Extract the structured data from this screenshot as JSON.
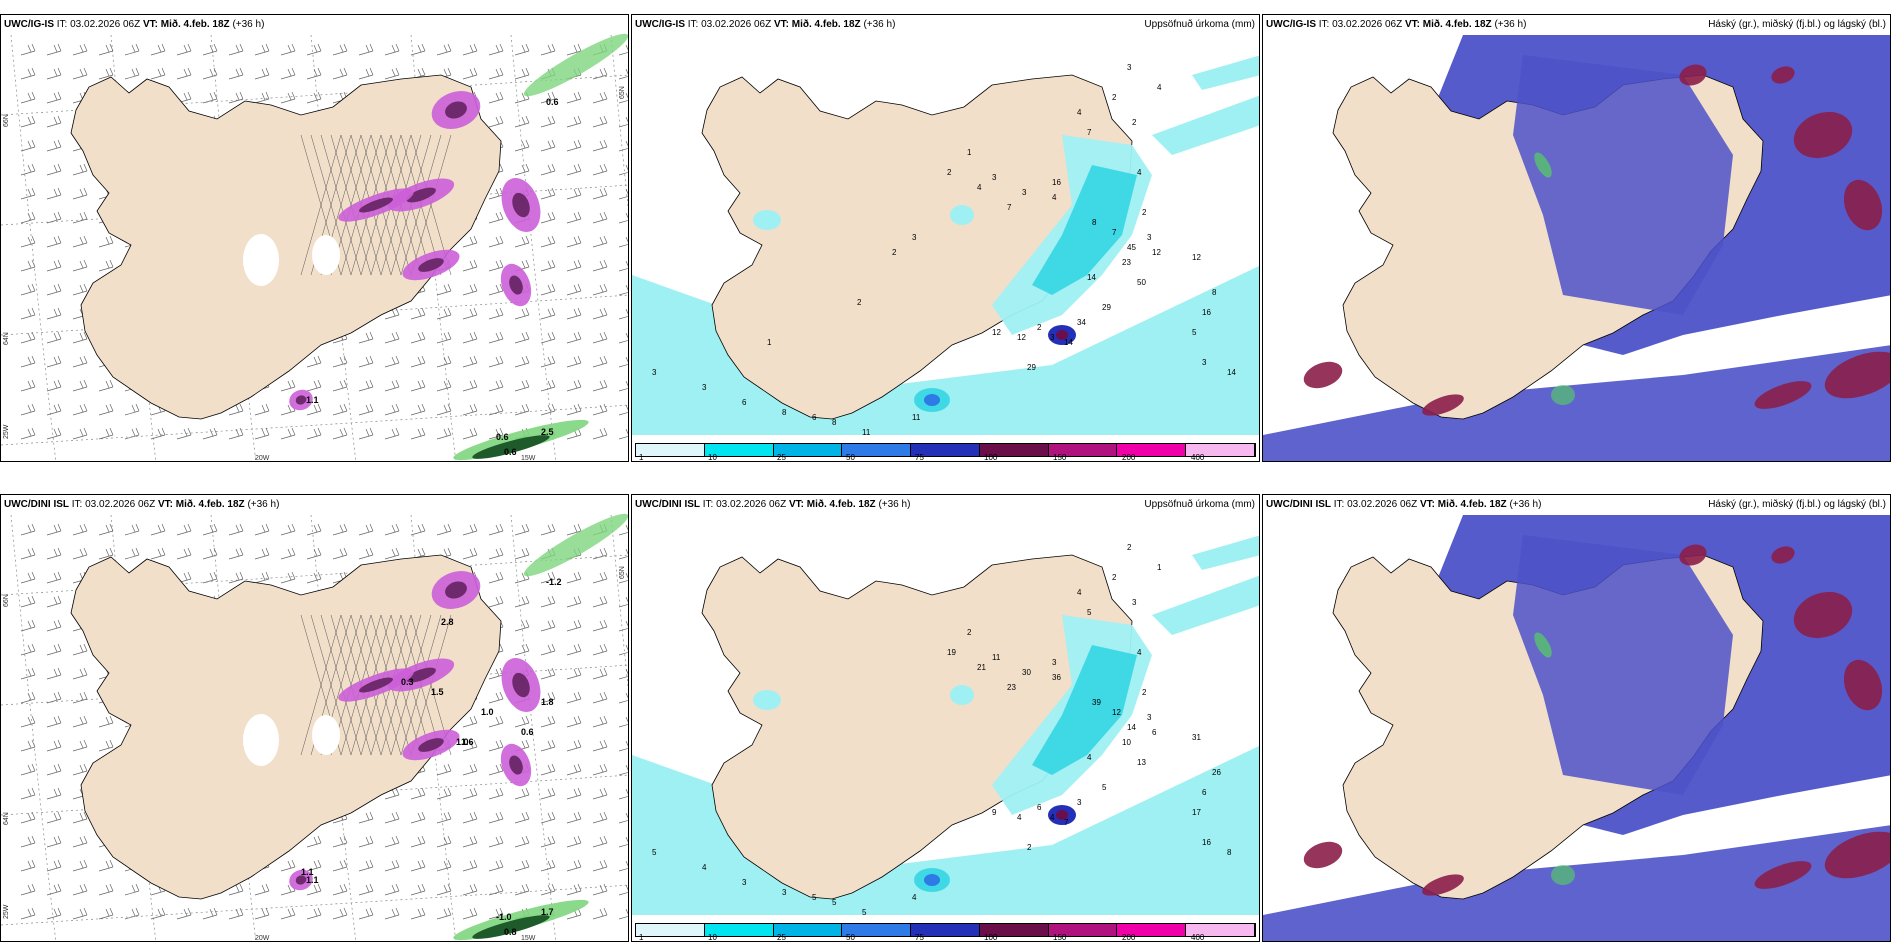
{
  "panels": [
    {
      "id": "p1",
      "header": {
        "model": "UWC/IG-IS",
        "it": "IT: 03.02.2026 06Z",
        "vt": "VT: Mið. 4.feb. 18Z",
        "lead": "(+36 h)"
      },
      "right": "",
      "type": "wind",
      "lon_labels": [
        "20W",
        "15W"
      ],
      "lat_labels": [
        "66N",
        "65N",
        "64N",
        "25W"
      ],
      "values": [
        "0.6",
        "0.6",
        "2.5",
        "0.6",
        "1.1"
      ]
    },
    {
      "id": "p2",
      "header": {
        "model": "UWC/IG-IS",
        "it": "IT: 03.02.2026 06Z",
        "vt": "VT: Mið. 4.feb. 18Z",
        "lead": "(+36 h)"
      },
      "right": "Uppsöfnuð úrkoma (mm)",
      "type": "precip",
      "values": [
        "3",
        "2",
        "2",
        "4",
        "7",
        "4",
        "1",
        "16",
        "3",
        "2",
        "4",
        "3",
        "7",
        "4",
        "8",
        "7",
        "4",
        "2",
        "3",
        "12",
        "23",
        "14",
        "29",
        "34",
        "45",
        "50",
        "12",
        "8",
        "5",
        "3",
        "2",
        "3",
        "14",
        "12",
        "29",
        "12",
        "16",
        "14",
        "3",
        "3",
        "6",
        "8",
        "6",
        "8",
        "11",
        "11",
        "1",
        "2",
        "3",
        "2"
      ]
    },
    {
      "id": "p3",
      "header": {
        "model": "UWC/IG-IS",
        "it": "IT: 03.02.2026 06Z",
        "vt": "VT: Mið. 4.feb. 18Z",
        "lead": "(+36 h)"
      },
      "right": "Háský (gr.), miðský (fj.bl.) og lágský (bl.)",
      "type": "cloud"
    },
    {
      "id": "p4",
      "header": {
        "model": "UWC/DINI ISL",
        "it": "IT: 03.02.2026 06Z",
        "vt": "VT: Mið. 4.feb. 18Z",
        "lead": "(+36 h)"
      },
      "right": "",
      "type": "wind",
      "lon_labels": [
        "20W",
        "15W"
      ],
      "lat_labels": [
        "66N",
        "65N",
        "64N",
        "25W"
      ],
      "values": [
        "-1.2",
        "-1.0",
        "1.7",
        "0.8",
        "1.1",
        "2.8",
        "1.5",
        "1.6",
        "0.3",
        "1.0",
        "1.0",
        "0.6",
        "1.8",
        "1.1"
      ]
    },
    {
      "id": "p5",
      "header": {
        "model": "UWC/DINI ISL",
        "it": "IT: 03.02.2026 06Z",
        "vt": "VT: Mið. 4.feb. 18Z",
        "lead": "(+36 h)"
      },
      "right": "Uppsöfnuð úrkoma (mm)",
      "type": "precip",
      "values": [
        "2",
        "2",
        "3",
        "4",
        "5",
        "1",
        "2",
        "3",
        "11",
        "19",
        "21",
        "30",
        "23",
        "36",
        "39",
        "12",
        "4",
        "2",
        "3",
        "6",
        "10",
        "4",
        "5",
        "3",
        "14",
        "13",
        "31",
        "26",
        "17",
        "16",
        "6",
        "4",
        "7",
        "9",
        "2",
        "4",
        "6",
        "8",
        "5",
        "4",
        "3",
        "3",
        "5",
        "5",
        "5",
        "4"
      ]
    },
    {
      "id": "p6",
      "header": {
        "model": "UWC/DINI ISL",
        "it": "IT: 03.02.2026 06Z",
        "vt": "VT: Mið. 4.feb. 18Z",
        "lead": "(+36 h)"
      },
      "right": "Háský (gr.), miðský (fj.bl.) og lágský (bl.)",
      "type": "cloud"
    }
  ],
  "colorbar": {
    "ticks": [
      "1",
      "10",
      "25",
      "50",
      "75",
      "100",
      "150",
      "200",
      "400"
    ],
    "colors": [
      "#dff7fb",
      "#00e5f0",
      "#00b4e6",
      "#2e7be8",
      "#2530b8",
      "#6b0f4a",
      "#b0137e",
      "#f000a8",
      "#f6b8ee"
    ]
  },
  "colors": {
    "land": "#f2dfca",
    "sea": "#ffffff",
    "precip_light": "#9ff0f3",
    "precip_mid": "#3fd9e6",
    "purple": "#cc5fd8",
    "dark_purple": "#6e2a6d",
    "green": "#7ed67e",
    "dark_green": "#1f5a2a",
    "cloud_high": "#4d52c8",
    "cloud_mid": "#8b1e4a",
    "cloud_low": "#57c46e"
  }
}
